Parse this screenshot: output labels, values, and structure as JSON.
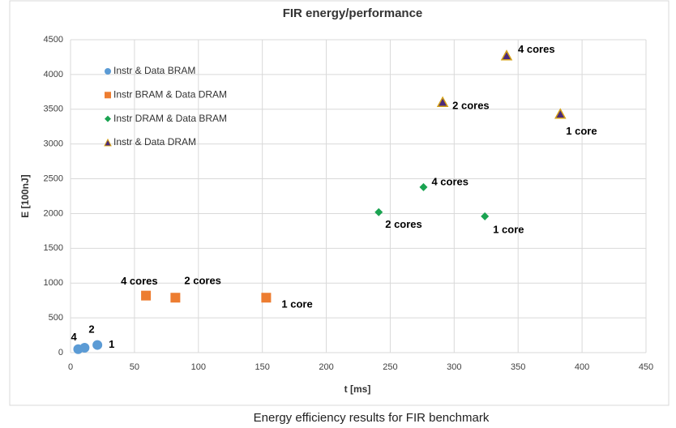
{
  "chart_data": {
    "type": "scatter",
    "title": "FIR energy/performance",
    "x_label": "t [ms]",
    "y_label": "E [100nJ]",
    "caption": "Energy efficiency results for FIR benchmark",
    "xlim": [
      0,
      450
    ],
    "xticks": [
      0,
      50,
      100,
      150,
      200,
      250,
      300,
      350,
      400,
      450
    ],
    "ylim": [
      0,
      4500
    ],
    "yticks": [
      0,
      500,
      1000,
      1500,
      2000,
      2500,
      3000,
      3500,
      4000,
      4500
    ],
    "grid": true,
    "legend": "upper left",
    "series": [
      {
        "name": "Instr & Data BRAM",
        "color": "#5b9bd5",
        "marker": "circle",
        "x": [
          6,
          11,
          21
        ],
        "values": [
          50,
          70,
          110
        ],
        "labels": [
          "4",
          "2",
          "1"
        ]
      },
      {
        "name": "Instr BRAM & Data DRAM",
        "color": "#ed7d31",
        "marker": "square",
        "x": [
          59,
          82,
          153
        ],
        "values": [
          820,
          790,
          790
        ],
        "labels": [
          "4 cores",
          "2 cores",
          "1 core"
        ]
      },
      {
        "name": "Instr DRAM & Data BRAM",
        "color": "#1aa351",
        "marker": "diamond",
        "x": [
          241,
          276,
          324
        ],
        "values": [
          2020,
          2380,
          1960
        ],
        "labels": [
          "2 cores",
          "4 cores",
          "1 core"
        ]
      },
      {
        "name": "Instr & Data DRAM",
        "color": "#4b2a7b",
        "marker": "triangle",
        "x": [
          291,
          341,
          383
        ],
        "values": [
          3600,
          4270,
          3430
        ],
        "labels": [
          "2 cores",
          "4 cores",
          "1 core"
        ]
      }
    ]
  }
}
